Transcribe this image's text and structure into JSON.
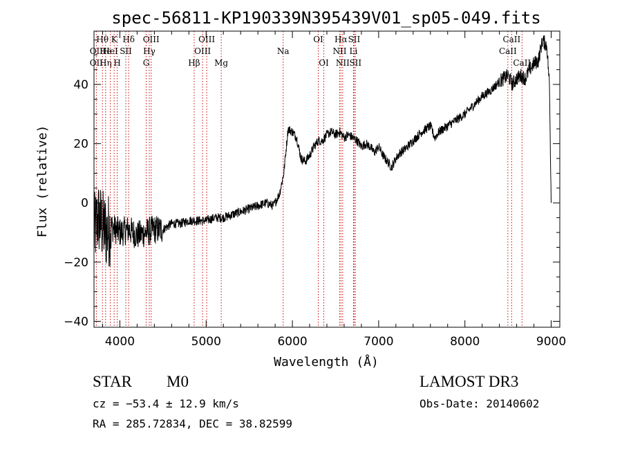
{
  "chart_data": {
    "type": "line",
    "title": "spec-56811-KP190339N395439V01_sp05-049.fits",
    "xlabel": "Wavelength (Å)",
    "ylabel": "Flux (relative)",
    "xlim": [
      3700,
      9100
    ],
    "ylim": [
      -42,
      58
    ],
    "xticks": [
      4000,
      5000,
      6000,
      7000,
      8000,
      9000
    ],
    "yticks": [
      -40,
      -20,
      0,
      20,
      40
    ],
    "xtick_labels": [
      "4000",
      "5000",
      "6000",
      "7000",
      "8000",
      "9000"
    ],
    "ytick_labels": [
      "−40",
      "−20",
      "0",
      "20",
      "40"
    ],
    "series": [
      {
        "name": "flux",
        "x": [
          3700,
          3750,
          3800,
          3850,
          3900,
          3950,
          4000,
          4100,
          4200,
          4300,
          4400,
          4500,
          4600,
          4700,
          4800,
          4900,
          5000,
          5100,
          5200,
          5300,
          5400,
          5500,
          5600,
          5700,
          5780,
          5850,
          5900,
          5950,
          6000,
          6050,
          6100,
          6150,
          6200,
          6250,
          6300,
          6350,
          6400,
          6450,
          6500,
          6550,
          6600,
          6650,
          6700,
          6750,
          6800,
          6850,
          6900,
          6950,
          7000,
          7050,
          7100,
          7150,
          7200,
          7250,
          7300,
          7400,
          7500,
          7600,
          7650,
          7700,
          7750,
          7800,
          7900,
          8000,
          8100,
          8200,
          8300,
          8400,
          8500,
          8550,
          8600,
          8650,
          8700,
          8750,
          8800,
          8850,
          8900,
          8950,
          8980,
          9000
        ],
        "y": [
          -10,
          -5,
          -8,
          -10,
          -8,
          -9,
          -10,
          -9,
          -11,
          -10,
          -9,
          -9,
          -7,
          -7,
          -6,
          -6,
          -6,
          -5,
          -5,
          -4,
          -3,
          -2,
          -1,
          0,
          -1,
          3,
          10,
          25,
          24,
          22,
          15,
          14,
          16,
          19,
          21,
          21,
          23,
          24,
          23,
          24,
          22,
          23,
          22,
          21,
          19,
          20,
          19,
          17,
          19,
          16,
          14,
          12,
          15,
          17,
          18,
          21,
          24,
          26,
          22,
          24,
          25,
          26,
          28,
          30,
          33,
          36,
          38,
          41,
          43,
          40,
          42,
          43,
          42,
          45,
          47,
          48,
          55,
          53,
          40,
          0
        ]
      }
    ],
    "line_markers": [
      {
        "label": "Hθ",
        "x": 3798,
        "row": 1
      },
      {
        "label": "OII",
        "x": 3727,
        "row": 2
      },
      {
        "label": "He",
        "x": 3835,
        "row": 2
      },
      {
        "label": "OII",
        "x": 3727,
        "row": 3
      },
      {
        "label": "Hη",
        "x": 3835,
        "row": 3
      },
      {
        "label": "K",
        "x": 3934,
        "row": 1
      },
      {
        "label": "HeI",
        "x": 3889,
        "row": 2
      },
      {
        "label": "H",
        "x": 3969,
        "row": 3
      },
      {
        "label": "Hδ",
        "x": 4102,
        "row": 1
      },
      {
        "label": "SII",
        "x": 4069,
        "row": 2
      },
      {
        "label": "OIII",
        "x": 4363,
        "row": 1
      },
      {
        "label": "Hγ",
        "x": 4341,
        "row": 2
      },
      {
        "label": "G",
        "x": 4305,
        "row": 3
      },
      {
        "label": "Hβ",
        "x": 4861,
        "row": 3
      },
      {
        "label": "OIII",
        "x": 5007,
        "row": 1
      },
      {
        "label": "OIII",
        "x": 4959,
        "row": 2
      },
      {
        "label": "Mg",
        "x": 5175,
        "row": 3
      },
      {
        "label": "Na",
        "x": 5893,
        "row": 2
      },
      {
        "label": "OI",
        "x": 6300,
        "row": 1
      },
      {
        "label": "OI",
        "x": 6364,
        "row": 3
      },
      {
        "label": "Hα",
        "x": 6563,
        "row": 1
      },
      {
        "label": "NII",
        "x": 6548,
        "row": 2
      },
      {
        "label": "NII",
        "x": 6583,
        "row": 3
      },
      {
        "label": "SII",
        "x": 6716,
        "row": 1
      },
      {
        "label": "Li",
        "x": 6708,
        "row": 2
      },
      {
        "label": "SII",
        "x": 6731,
        "row": 3
      },
      {
        "label": "CaII",
        "x": 8542,
        "row": 1
      },
      {
        "label": "CaII",
        "x": 8498,
        "row": 2
      },
      {
        "label": "CaII",
        "x": 8662,
        "row": 3
      }
    ]
  },
  "info": {
    "object_class": "STAR",
    "subclass": "M0",
    "survey": "LAMOST DR3",
    "redshift_line": "cz = −53.4 ± 12.9 km/s",
    "obs_date": "Obs-Date: 20140602",
    "coords": "RA = 285.72834, DEC =  38.82599"
  },
  "colors": {
    "line": "#000000",
    "marker": "#cc0000",
    "frame": "#000000"
  }
}
